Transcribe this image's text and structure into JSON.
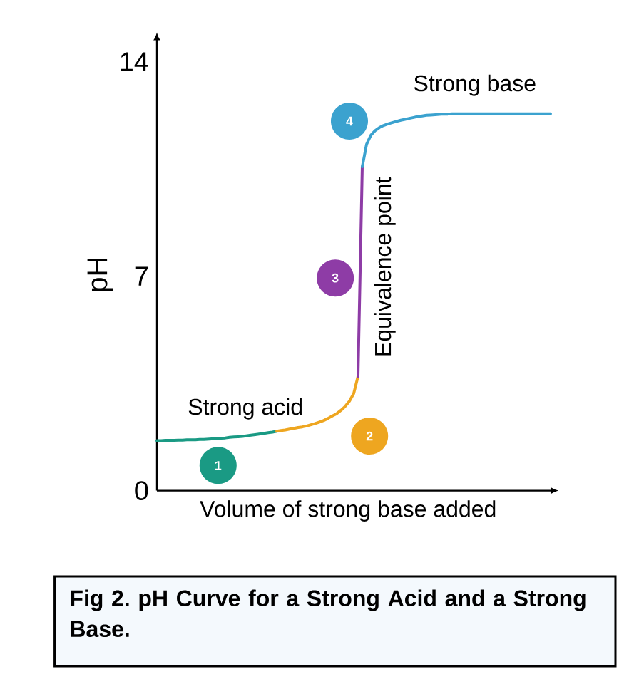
{
  "chart_data": {
    "type": "line",
    "xlabel": "Volume of strong base added",
    "ylabel": "pH",
    "ylim": [
      0,
      14.7
    ],
    "yticks": [
      0,
      7,
      14
    ],
    "categories": [
      null,
      null,
      null,
      null,
      null,
      null,
      null,
      null,
      null,
      null,
      null,
      null,
      null,
      null,
      null,
      null,
      null,
      null,
      null,
      null,
      null,
      null,
      null,
      null,
      null,
      null,
      null,
      null,
      null,
      null,
      null,
      null,
      null,
      null,
      null,
      null,
      null,
      null,
      null,
      null,
      null,
      null,
      null,
      null,
      null,
      null,
      null,
      null,
      null,
      null,
      null,
      null,
      null,
      null,
      null,
      null,
      null,
      null,
      null,
      null,
      null,
      null,
      null,
      null,
      null,
      null,
      null,
      null,
      null,
      null,
      null,
      null,
      null,
      null,
      null,
      null,
      null,
      null,
      null,
      null,
      null,
      null,
      null,
      null,
      null,
      null,
      null,
      null,
      null,
      null,
      null,
      null,
      null
    ],
    "series": [
      {
        "name": "1",
        "color": "#1a9a84",
        "values": [
          1.63,
          1.63,
          1.64,
          1.64,
          1.64,
          1.65,
          1.65,
          1.66,
          1.66,
          1.66,
          1.67,
          1.67,
          1.68,
          1.69,
          1.7,
          1.71,
          1.72,
          1.74,
          1.75,
          1.76,
          1.77,
          1.79,
          1.81,
          1.83,
          1.85,
          1.87,
          1.89,
          1.91,
          1.94,
          null,
          null,
          null,
          null,
          null,
          null,
          null,
          null,
          null,
          null,
          null,
          null,
          null,
          null,
          null,
          null,
          null,
          null,
          null,
          null,
          null,
          null,
          null,
          null,
          null,
          null,
          null,
          null,
          null,
          null,
          null,
          null,
          null,
          null,
          null,
          null,
          null,
          null,
          null,
          null,
          null,
          null,
          null,
          null,
          null,
          null,
          null,
          null,
          null,
          null,
          null,
          null,
          null,
          null,
          null,
          null,
          null,
          null,
          null,
          null,
          null,
          null,
          null,
          null
        ]
      },
      {
        "name": "2",
        "color": "#eea620",
        "values": [
          null,
          null,
          null,
          null,
          null,
          null,
          null,
          null,
          null,
          null,
          null,
          null,
          null,
          null,
          null,
          null,
          null,
          null,
          null,
          null,
          null,
          null,
          null,
          null,
          null,
          null,
          null,
          null,
          1.94,
          1.96,
          1.98,
          2.01,
          2.03,
          2.06,
          2.08,
          2.11,
          2.15,
          2.19,
          2.24,
          2.29,
          2.36,
          2.44,
          2.51,
          2.62,
          2.75,
          2.92,
          3.17,
          3.73,
          null,
          null,
          null,
          null,
          null,
          null,
          null,
          null,
          null,
          null,
          null,
          null,
          null,
          null,
          null,
          null,
          null,
          null,
          null,
          null,
          null,
          null,
          null,
          null,
          null,
          null,
          null,
          null,
          null,
          null,
          null,
          null,
          null,
          null,
          null,
          null,
          null,
          null,
          null,
          null,
          null,
          null,
          null,
          null,
          null
        ]
      },
      {
        "name": "3",
        "color": "#8e3ca6",
        "values": [
          null,
          null,
          null,
          null,
          null,
          null,
          null,
          null,
          null,
          null,
          null,
          null,
          null,
          null,
          null,
          null,
          null,
          null,
          null,
          null,
          null,
          null,
          null,
          null,
          null,
          null,
          null,
          null,
          null,
          null,
          null,
          null,
          null,
          null,
          null,
          null,
          null,
          null,
          null,
          null,
          null,
          null,
          null,
          null,
          null,
          null,
          null,
          3.73,
          10.57,
          null,
          null,
          null,
          null,
          null,
          null,
          null,
          null,
          null,
          null,
          null,
          null,
          null,
          null,
          null,
          null,
          null,
          null,
          null,
          null,
          null,
          null,
          null,
          null,
          null,
          null,
          null,
          null,
          null,
          null,
          null,
          null,
          null,
          null,
          null,
          null,
          null,
          null,
          null,
          null,
          null,
          null,
          null,
          null
        ]
      },
      {
        "name": "4",
        "color": "#3ba2cf",
        "values": [
          null,
          null,
          null,
          null,
          null,
          null,
          null,
          null,
          null,
          null,
          null,
          null,
          null,
          null,
          null,
          null,
          null,
          null,
          null,
          null,
          null,
          null,
          null,
          null,
          null,
          null,
          null,
          null,
          null,
          null,
          null,
          null,
          null,
          null,
          null,
          null,
          null,
          null,
          null,
          null,
          null,
          null,
          null,
          null,
          null,
          null,
          null,
          null,
          10.57,
          11.3,
          11.6,
          11.75,
          11.85,
          11.92,
          11.97,
          12.01,
          12.05,
          12.09,
          12.12,
          12.15,
          12.18,
          12.21,
          12.23,
          12.25,
          12.26,
          12.27,
          12.28,
          12.29,
          12.29,
          12.3,
          12.3,
          12.3,
          12.3,
          12.3,
          12.3,
          12.3,
          12.3,
          12.3,
          12.3,
          12.3,
          12.3,
          12.3,
          12.3,
          12.3,
          12.3,
          12.3,
          12.3,
          12.3,
          12.3,
          12.3,
          12.3,
          12.3,
          12.3
        ]
      }
    ],
    "annotations": [
      "Strong acid",
      "Equivalence point",
      "Strong base",
      "Fig 2. pH Curve for a Strong Acid and a Strong Base."
    ]
  }
}
